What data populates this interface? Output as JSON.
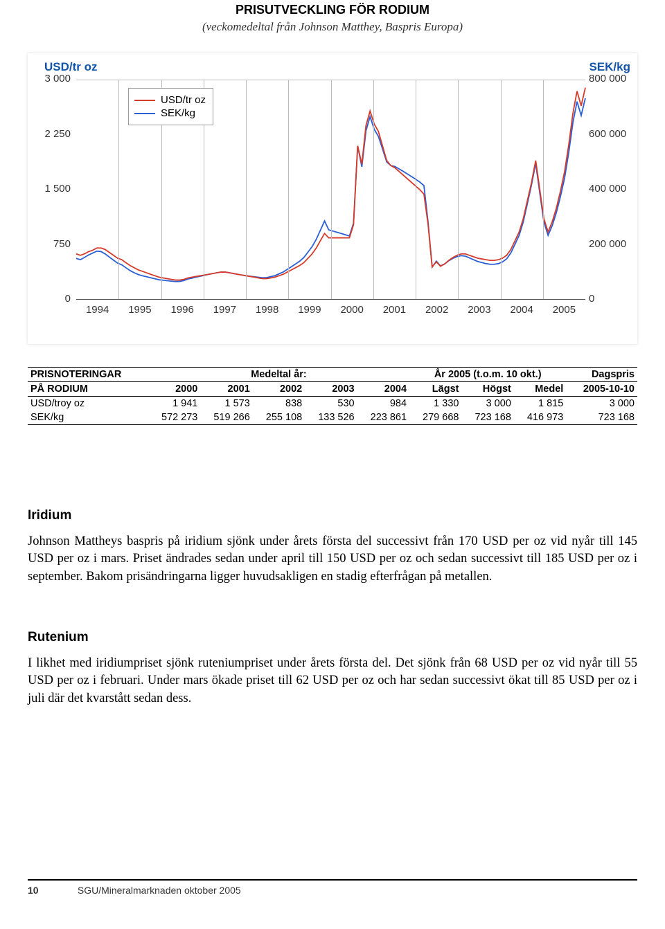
{
  "chart": {
    "title": "PRISUTVECKLING FÖR RODIUM",
    "subtitle": "(veckomedeltal från Johnson Matthey, Baspris Europa)",
    "y1_label": "USD/tr oz",
    "y2_label": "SEK/kg",
    "y1_ticks": [
      "3 000",
      "2 250",
      "1 500",
      "750",
      "0"
    ],
    "y2_ticks": [
      "800 000",
      "600 000",
      "400 000",
      "200 000",
      "0"
    ],
    "x_ticks": [
      "1994",
      "1995",
      "1996",
      "1997",
      "1998",
      "1999",
      "2000",
      "2001",
      "2002",
      "2003",
      "2004",
      "2005"
    ],
    "colors": {
      "usd": "#d63b2a",
      "sek": "#2a5fd6",
      "grid": "#bbbbbb",
      "axis": "#555555",
      "label": "#1155aa"
    },
    "legend": [
      {
        "label": "USD/tr oz",
        "color": "#d63b2a"
      },
      {
        "label": "SEK/kg",
        "color": "#2a5fd6"
      }
    ],
    "y1_max": 3000,
    "series_usd": [
      620,
      600,
      620,
      650,
      670,
      700,
      700,
      680,
      640,
      600,
      560,
      540,
      500,
      460,
      430,
      400,
      380,
      360,
      340,
      320,
      300,
      290,
      280,
      270,
      260,
      260,
      270,
      290,
      300,
      310,
      320,
      330,
      340,
      350,
      360,
      370,
      370,
      360,
      350,
      340,
      330,
      320,
      310,
      300,
      290,
      280,
      280,
      290,
      300,
      320,
      340,
      370,
      400,
      430,
      460,
      500,
      560,
      620,
      700,
      800,
      900,
      840,
      840,
      840,
      840,
      840,
      840,
      1020,
      2100,
      1850,
      2380,
      2580,
      2400,
      2300,
      2100,
      1900,
      1830,
      1800,
      1750,
      1700,
      1650,
      1600,
      1550,
      1500,
      1440,
      1030,
      440,
      510,
      450,
      480,
      530,
      570,
      600,
      620,
      620,
      600,
      580,
      560,
      550,
      540,
      530,
      530,
      540,
      560,
      600,
      680,
      800,
      920,
      1100,
      1350,
      1600,
      1900,
      1500,
      1100,
      920,
      1060,
      1250,
      1480,
      1750,
      2120,
      2550,
      2850,
      2650,
      2900
    ],
    "series_sek_ratio": [
      0.9,
      0.9,
      0.92,
      0.93,
      0.94,
      0.94,
      0.93,
      0.91,
      0.9,
      0.89,
      0.88,
      0.87,
      0.86,
      0.85,
      0.84,
      0.84,
      0.84,
      0.85,
      0.86,
      0.87,
      0.88,
      0.89,
      0.9,
      0.91,
      0.92,
      0.93,
      0.94,
      0.95,
      0.96,
      0.97,
      0.98,
      0.99,
      1.0,
      1.0,
      1.0,
      1.0,
      1.0,
      1.0,
      1.0,
      1.0,
      1.0,
      1.0,
      1.01,
      1.02,
      1.03,
      1.04,
      1.05,
      1.06,
      1.07,
      1.08,
      1.09,
      1.1,
      1.11,
      1.12,
      1.13,
      1.14,
      1.15,
      1.16,
      1.17,
      1.18,
      1.19,
      1.13,
      1.11,
      1.09,
      1.07,
      1.05,
      1.03,
      1.02,
      1.0,
      0.98,
      0.97,
      0.97,
      0.97,
      0.97,
      0.98,
      0.99,
      1.0,
      1.01,
      1.02,
      1.03,
      1.04,
      1.05,
      1.06,
      1.07,
      1.08,
      1.03,
      1.0,
      1.02,
      1.01,
      1.0,
      0.99,
      0.98,
      0.97,
      0.96,
      0.95,
      0.94,
      0.93,
      0.92,
      0.91,
      0.9,
      0.9,
      0.9,
      0.9,
      0.91,
      0.92,
      0.93,
      0.94,
      0.95,
      0.96,
      0.97,
      0.98,
      0.98,
      0.97,
      0.96,
      0.95,
      0.95,
      0.95,
      0.95,
      0.95,
      0.95,
      0.95,
      0.95,
      0.95,
      0.95
    ]
  },
  "table": {
    "group_headers": {
      "col1_line1": "PRISNOTERINGAR",
      "col1_line2": "PÅ RODIUM",
      "mid": "Medeltal år:",
      "right": "År 2005 (t.o.m. 10 okt.)",
      "last": "Dagspris"
    },
    "columns": [
      "2000",
      "2001",
      "2002",
      "2003",
      "2004",
      "Lägst",
      "Högst",
      "Medel",
      "2005-10-10"
    ],
    "rows": [
      {
        "label": "USD/troy oz",
        "vals": [
          "1 941",
          "1 573",
          "838",
          "530",
          "984",
          "1 330",
          "3 000",
          "1 815",
          "3 000"
        ]
      },
      {
        "label": "SEK/kg",
        "vals": [
          "572 273",
          "519 266",
          "255 108",
          "133 526",
          "223 861",
          "279 668",
          "723 168",
          "416 973",
          "723 168"
        ]
      }
    ]
  },
  "sections": {
    "iridium_head": "Iridium",
    "iridium_body": "Johnson Mattheys baspris på iridium sjönk under årets första del successivt från 170 USD per oz vid nyår till 145 USD per oz i mars. Priset ändrades sedan under april till 150 USD per oz och sedan successivt till 185 USD per oz i september. Bakom prisändringarna ligger huvudsakligen en stadig efterfrågan på metallen.",
    "rutenium_head": "Rutenium",
    "rutenium_body": "I likhet med iridiumpriset sjönk ruteniumpriset under årets första del. Det sjönk från 68 USD per oz vid nyår till 55 USD per oz i februari. Under mars ökade priset till 62 USD per oz och har sedan successivt ökat till 85 USD per oz i juli där det kvarstått sedan dess."
  },
  "footer": {
    "page": "10",
    "text": "SGU/Mineralmarknaden oktober 2005"
  }
}
